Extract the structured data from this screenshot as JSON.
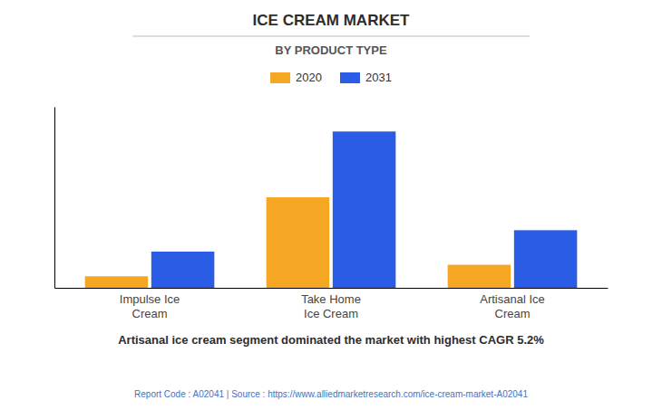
{
  "chart_data": {
    "type": "bar",
    "title": "ICE CREAM MARKET",
    "subtitle": "BY PRODUCT TYPE",
    "categories": [
      "Impulse Ice\nCream",
      "Take Home\nIce Cream",
      "Artisanal Ice\nCream"
    ],
    "series": [
      {
        "name": "2020",
        "color": "#F5A623",
        "values": [
          0.7,
          5.5,
          1.4
        ]
      },
      {
        "name": "2031",
        "color": "#2B5CE6",
        "values": [
          2.2,
          9.5,
          3.5
        ]
      }
    ],
    "ylim": [
      0,
      11
    ],
    "grid": false,
    "legend": "top",
    "tick_labels": "x",
    "annotations": [
      "Artisanal ice cream segment dominated the market with highest CAGR 5.2%",
      "Report Code : A02041  |  Source : https://www.alliedmarketresearch.com/ice-cream-market-A02041"
    ]
  }
}
